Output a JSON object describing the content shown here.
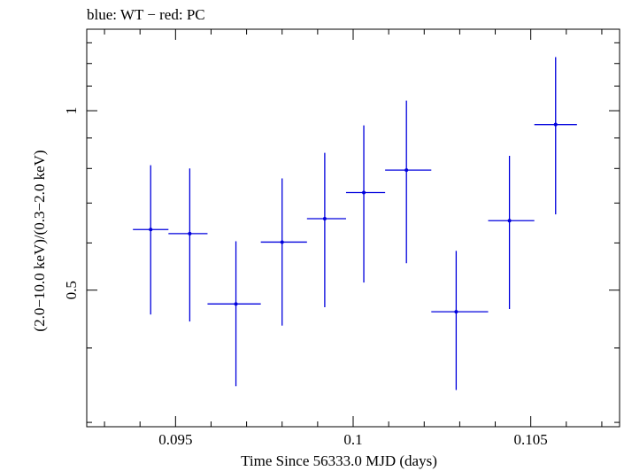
{
  "chart_data": {
    "type": "scatter",
    "title": "blue: WT − red: PC",
    "xlabel": "Time Since 56333.0 MJD (days)",
    "ylabel": "(2.0−10.0 keV)/(0.3−2.0 keV)",
    "xlim": [
      0.0925,
      0.1075
    ],
    "ylim": [
      0.295,
      1.37
    ],
    "ylog": true,
    "x_ticks": [
      {
        "value": 0.095,
        "label": "0.095"
      },
      {
        "value": 0.1,
        "label": "0.1"
      },
      {
        "value": 0.105,
        "label": "0.105"
      }
    ],
    "y_ticks": [
      {
        "value": 0.5,
        "label": "0.5"
      },
      {
        "value": 1.0,
        "label": "1"
      }
    ],
    "grid": false,
    "series": [
      {
        "color": "#0000dd",
        "points": [
          {
            "x": 0.0943,
            "xerr_low": 0.0938,
            "xerr_high": 0.0948,
            "y": 0.632,
            "y_low": 0.455,
            "y_high": 0.81
          },
          {
            "x": 0.0954,
            "xerr_low": 0.0948,
            "xerr_high": 0.0959,
            "y": 0.622,
            "y_low": 0.443,
            "y_high": 0.8
          },
          {
            "x": 0.0967,
            "xerr_low": 0.0959,
            "xerr_high": 0.0974,
            "y": 0.474,
            "y_low": 0.345,
            "y_high": 0.604
          },
          {
            "x": 0.098,
            "xerr_low": 0.0974,
            "xerr_high": 0.0987,
            "y": 0.602,
            "y_low": 0.436,
            "y_high": 0.77
          },
          {
            "x": 0.0992,
            "xerr_low": 0.0987,
            "xerr_high": 0.0998,
            "y": 0.659,
            "y_low": 0.468,
            "y_high": 0.85
          },
          {
            "x": 0.1003,
            "xerr_low": 0.0998,
            "xerr_high": 0.1009,
            "y": 0.729,
            "y_low": 0.515,
            "y_high": 0.945
          },
          {
            "x": 0.1015,
            "xerr_low": 0.1009,
            "xerr_high": 0.1022,
            "y": 0.795,
            "y_low": 0.555,
            "y_high": 1.04
          },
          {
            "x": 0.1029,
            "xerr_low": 0.1022,
            "xerr_high": 0.1038,
            "y": 0.46,
            "y_low": 0.34,
            "y_high": 0.582
          },
          {
            "x": 0.1044,
            "xerr_low": 0.1038,
            "xerr_high": 0.1051,
            "y": 0.654,
            "y_low": 0.465,
            "y_high": 0.84
          },
          {
            "x": 0.1057,
            "xerr_low": 0.1051,
            "xerr_high": 0.1063,
            "y": 0.948,
            "y_low": 0.67,
            "y_high": 1.23
          }
        ]
      }
    ]
  }
}
